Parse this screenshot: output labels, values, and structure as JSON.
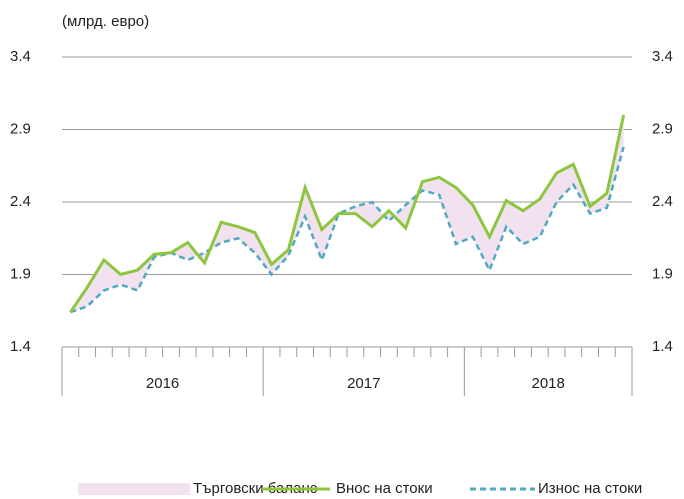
{
  "chart_data": {
    "type": "line",
    "y_label": "(млрд. евро)",
    "categories": [
      null,
      null,
      null,
      null,
      null,
      null,
      null,
      null,
      null,
      null,
      null,
      null,
      null,
      null,
      null,
      null,
      null,
      null,
      null,
      null,
      null,
      null,
      null,
      null,
      null,
      null,
      null,
      null,
      null,
      null,
      null,
      null,
      null,
      null
    ],
    "year_labels": [
      "2016",
      "2017",
      "2018"
    ],
    "area": {
      "name": "Търговски баланс",
      "color": "#f2e2f0"
    },
    "series": [
      {
        "name": "Внос на стоки",
        "color": "#8cc63f",
        "dashed": false,
        "values": [
          1.64,
          1.81,
          2.0,
          1.9,
          1.93,
          2.04,
          2.05,
          2.12,
          1.98,
          2.26,
          2.23,
          2.19,
          1.97,
          2.07,
          2.5,
          2.21,
          2.32,
          2.32,
          2.23,
          2.34,
          2.22,
          2.54,
          2.57,
          2.5,
          2.38,
          2.16,
          2.41,
          2.34,
          2.42,
          2.6,
          2.66,
          2.37,
          2.46,
          3.0
        ]
      },
      {
        "name": "Износ на стоки",
        "color": "#4fa9bf",
        "dashed": true,
        "values": [
          1.64,
          1.68,
          1.79,
          1.83,
          1.79,
          2.02,
          2.05,
          2.0,
          2.05,
          2.12,
          2.15,
          2.05,
          1.9,
          2.03,
          2.3,
          2.0,
          2.32,
          2.37,
          2.4,
          2.27,
          2.38,
          2.48,
          2.45,
          2.11,
          2.16,
          1.93,
          2.23,
          2.11,
          2.16,
          2.4,
          2.52,
          2.32,
          2.36,
          2.78
        ]
      }
    ],
    "ylim": [
      1.4,
      3.4
    ],
    "yticks": [
      1.4,
      1.9,
      2.4,
      2.9,
      3.4
    ],
    "grid": true
  }
}
